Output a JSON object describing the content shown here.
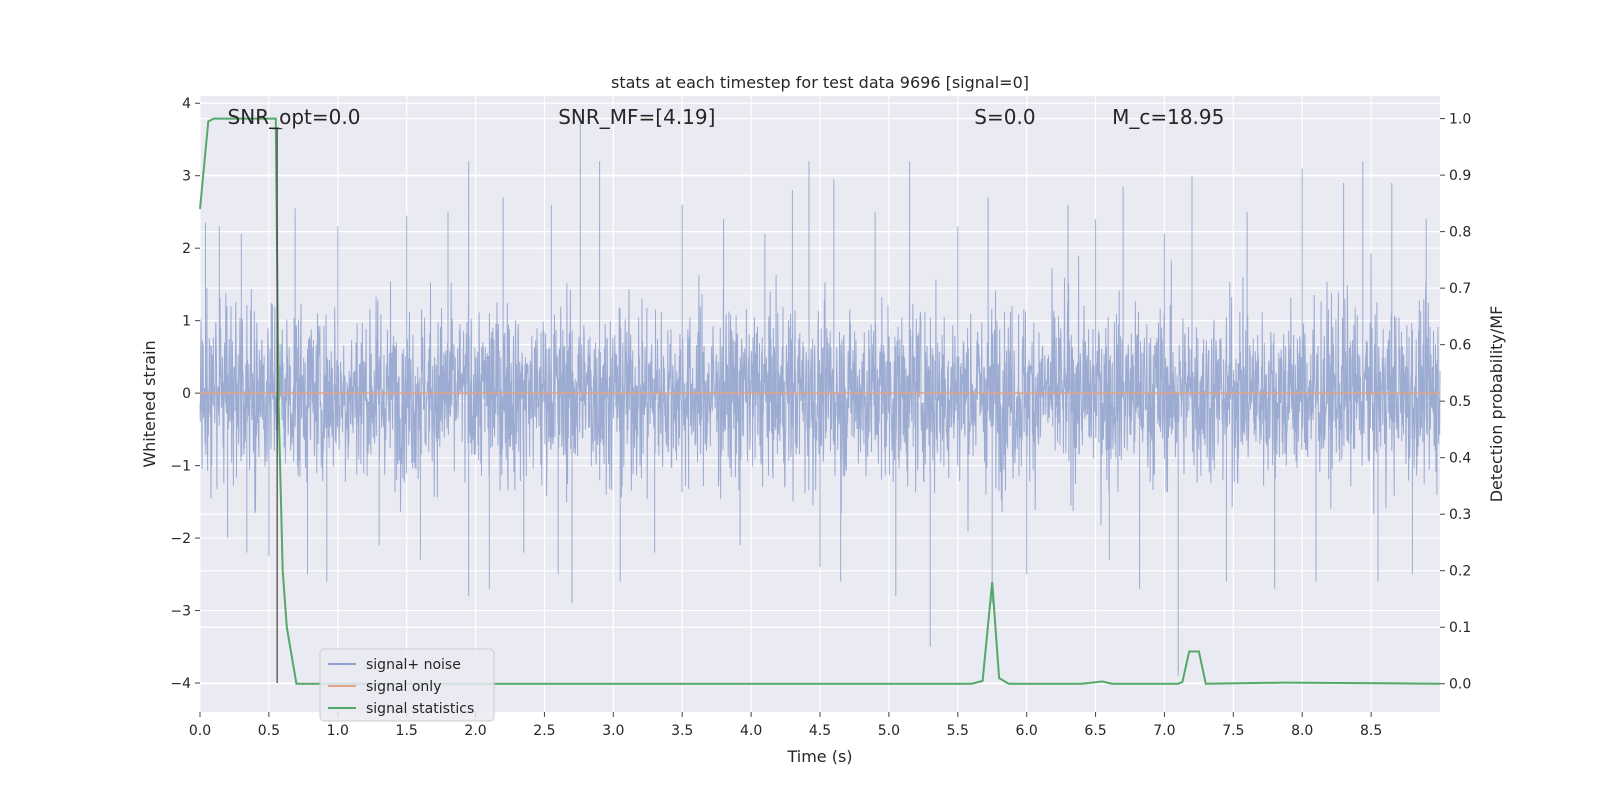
{
  "chart_data": {
    "type": "line",
    "title": "stats at each timestep for test data 9696 [signal=0]",
    "xlabel": "Time (s)",
    "ylabel": "Whitened strain",
    "ylabel_right": "Detection probability/MF",
    "xlim": [
      0,
      9.0
    ],
    "ylim": [
      -4.4,
      4.1
    ],
    "ylim_right": [
      -0.05,
      1.04
    ],
    "x_ticks": [
      0.0,
      0.5,
      1.0,
      1.5,
      2.0,
      2.5,
      3.0,
      3.5,
      4.0,
      4.5,
      5.0,
      5.5,
      6.0,
      6.5,
      7.0,
      7.5,
      8.0,
      8.5
    ],
    "x_tick_labels": [
      "0.0",
      "0.5",
      "1.0",
      "1.5",
      "2.0",
      "2.5",
      "3.0",
      "3.5",
      "4.0",
      "4.5",
      "5.0",
      "5.5",
      "6.0",
      "6.5",
      "7.0",
      "7.5",
      "8.0",
      "8.5"
    ],
    "y_ticks": [
      4,
      3,
      2,
      1,
      0,
      -1,
      -2,
      -3,
      -4
    ],
    "y_tick_labels": [
      "4",
      "3",
      "2",
      "1",
      "0",
      "−1",
      "−2",
      "−3",
      "−4"
    ],
    "y_right_ticks": [
      1.0,
      0.9,
      0.8,
      0.7,
      0.6,
      0.5,
      0.4,
      0.3,
      0.2,
      0.1,
      0.0
    ],
    "y_right_tick_labels": [
      "1.0",
      "0.9",
      "0.8",
      "0.7",
      "0.6",
      "0.5",
      "0.4",
      "0.3",
      "0.2",
      "0.1",
      "0.0"
    ],
    "grid": true,
    "legend_position": "lower-left",
    "annotations": [
      {
        "label": "SNR_opt=0.0",
        "x": 0.2
      },
      {
        "label": "SNR_MF=[4.19]",
        "x": 2.6
      },
      {
        "label": "S=0.0",
        "x": 5.62
      },
      {
        "label": "M_c=18.95",
        "x": 6.62
      }
    ],
    "vertical_marker_x": 0.56,
    "series": [
      {
        "name": "signal+ noise",
        "color": "#8da0cb",
        "axis": "left",
        "envelope_typical": 1.8,
        "peaks": [
          {
            "x": 0.04,
            "y": 2.35
          },
          {
            "x": 0.14,
            "y": 2.3
          },
          {
            "x": 0.2,
            "y": -2.0
          },
          {
            "x": 0.3,
            "y": 2.2
          },
          {
            "x": 0.34,
            "y": -2.2
          },
          {
            "x": 0.5,
            "y": -2.25
          },
          {
            "x": 0.69,
            "y": 2.55
          },
          {
            "x": 0.78,
            "y": -2.5
          },
          {
            "x": 0.92,
            "y": -2.6
          },
          {
            "x": 1.0,
            "y": 2.3
          },
          {
            "x": 1.3,
            "y": -2.1
          },
          {
            "x": 1.5,
            "y": 2.45
          },
          {
            "x": 1.6,
            "y": -2.3
          },
          {
            "x": 1.8,
            "y": 2.5
          },
          {
            "x": 1.95,
            "y": 3.2
          },
          {
            "x": 1.95,
            "y": -2.8
          },
          {
            "x": 2.1,
            "y": -2.7
          },
          {
            "x": 2.2,
            "y": 2.7
          },
          {
            "x": 2.35,
            "y": -2.2
          },
          {
            "x": 2.55,
            "y": 2.6
          },
          {
            "x": 2.6,
            "y": -2.5
          },
          {
            "x": 2.7,
            "y": -2.9
          },
          {
            "x": 2.76,
            "y": 3.85
          },
          {
            "x": 2.9,
            "y": 3.2
          },
          {
            "x": 3.05,
            "y": -2.6
          },
          {
            "x": 3.3,
            "y": -2.2
          },
          {
            "x": 3.5,
            "y": 2.6
          },
          {
            "x": 3.8,
            "y": 2.4
          },
          {
            "x": 3.92,
            "y": -2.1
          },
          {
            "x": 4.1,
            "y": 2.2
          },
          {
            "x": 4.3,
            "y": 2.8
          },
          {
            "x": 4.42,
            "y": 3.2
          },
          {
            "x": 4.5,
            "y": -2.4
          },
          {
            "x": 4.6,
            "y": 2.95
          },
          {
            "x": 4.65,
            "y": -2.6
          },
          {
            "x": 4.9,
            "y": 2.5
          },
          {
            "x": 5.05,
            "y": -2.8
          },
          {
            "x": 5.15,
            "y": 3.2
          },
          {
            "x": 5.3,
            "y": -3.5
          },
          {
            "x": 5.5,
            "y": 2.3
          },
          {
            "x": 5.72,
            "y": 2.7
          },
          {
            "x": 5.75,
            "y": -2.9
          },
          {
            "x": 6.0,
            "y": -2.5
          },
          {
            "x": 6.3,
            "y": 2.6
          },
          {
            "x": 6.5,
            "y": 2.4
          },
          {
            "x": 6.6,
            "y": -2.3
          },
          {
            "x": 6.7,
            "y": 2.85
          },
          {
            "x": 6.82,
            "y": -2.7
          },
          {
            "x": 7.0,
            "y": 2.2
          },
          {
            "x": 7.1,
            "y": -3.9
          },
          {
            "x": 7.2,
            "y": 3.0
          },
          {
            "x": 7.45,
            "y": -2.6
          },
          {
            "x": 7.6,
            "y": 2.5
          },
          {
            "x": 7.8,
            "y": -2.7
          },
          {
            "x": 8.0,
            "y": 3.1
          },
          {
            "x": 8.1,
            "y": -2.6
          },
          {
            "x": 8.3,
            "y": 2.9
          },
          {
            "x": 8.44,
            "y": 3.2
          },
          {
            "x": 8.55,
            "y": -2.6
          },
          {
            "x": 8.65,
            "y": 2.9
          },
          {
            "x": 8.8,
            "y": -2.5
          },
          {
            "x": 8.9,
            "y": 2.4
          }
        ]
      },
      {
        "name": "signal only",
        "color": "#e5a384",
        "axis": "left",
        "x": [
          0.0,
          9.0
        ],
        "y": [
          0.0,
          0.0
        ]
      },
      {
        "name": "signal statistics",
        "color": "#55a868",
        "axis": "right",
        "x": [
          0.0,
          0.06,
          0.1,
          0.15,
          0.3,
          0.45,
          0.55,
          0.57,
          0.6,
          0.63,
          0.7,
          1.0,
          5.6,
          5.68,
          5.75,
          5.8,
          5.87,
          6.4,
          6.55,
          6.62,
          7.1,
          7.13,
          7.18,
          7.25,
          7.3,
          7.88,
          9.0
        ],
        "y": [
          0.84,
          0.995,
          1.0,
          1.0,
          1.0,
          1.0,
          1.0,
          0.5,
          0.2,
          0.1,
          0.0,
          0.0,
          0.0,
          0.005,
          0.18,
          0.01,
          0.0,
          0.0,
          0.004,
          0.0,
          0.0,
          0.003,
          0.057,
          0.057,
          0.0,
          0.002,
          0.0
        ]
      }
    ]
  }
}
